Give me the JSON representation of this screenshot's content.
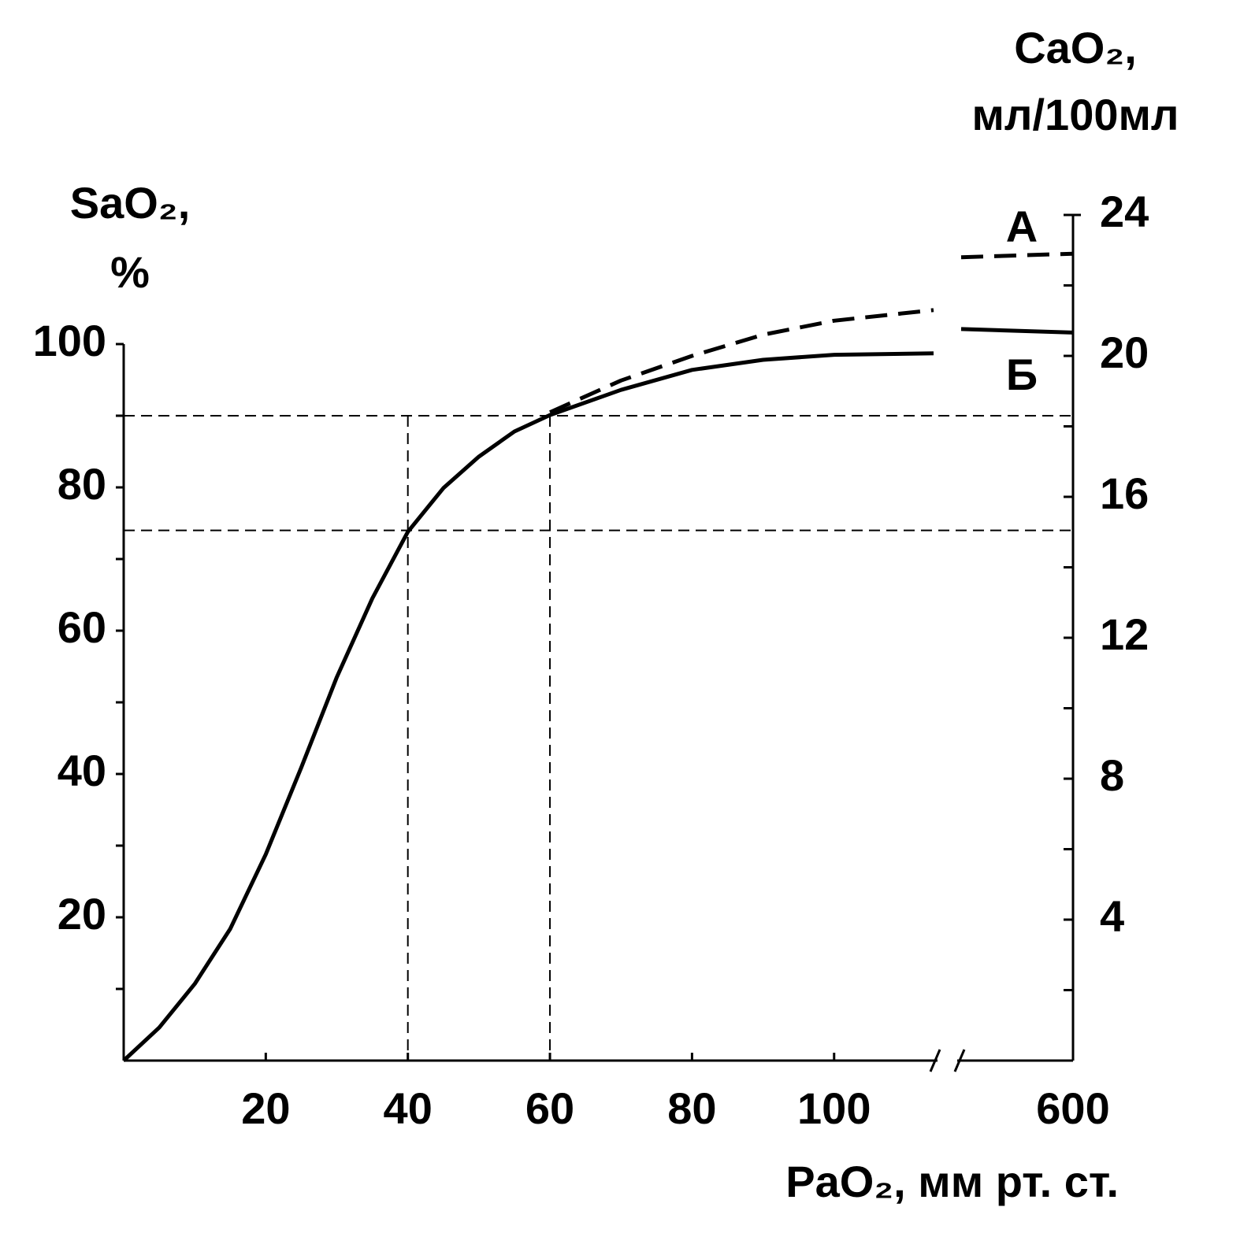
{
  "chart_data": {
    "type": "line",
    "y_label": [
      "SaO₂,",
      "%"
    ],
    "y2_label": [
      "CaO₂,",
      "мл/100мл"
    ],
    "x_label": "PaO₂, мм рт. ст.",
    "x": [
      0,
      5,
      10,
      15,
      20,
      25,
      30,
      35,
      40,
      45,
      50,
      55,
      60,
      70,
      80,
      90,
      100,
      114,
      585,
      600
    ],
    "xlim": [
      0,
      600
    ],
    "xbreak": [
      114,
      585
    ],
    "xticks": [
      20,
      40,
      60,
      80,
      100,
      600
    ],
    "ylim": [
      0,
      100
    ],
    "yticks": [
      20,
      40,
      60,
      80,
      100
    ],
    "yminorticks": [
      10,
      30,
      50,
      70,
      90
    ],
    "y2lim": [
      0,
      24
    ],
    "y2ticks": [
      4,
      8,
      12,
      16,
      20,
      24
    ],
    "y2minorticks": [
      2,
      6,
      10,
      14,
      18,
      22
    ],
    "reference_lines": {
      "x": [
        40,
        60
      ],
      "y": [
        90,
        74
      ]
    },
    "series": [
      {
        "name": "Б",
        "color": "#000000",
        "linestyle": "solid",
        "values": [
          0,
          4.6,
          10.7,
          18.4,
          28.8,
          40.9,
          53.5,
          64.5,
          73.8,
          79.9,
          84.3,
          87.8,
          90.1,
          93.6,
          96.4,
          97.8,
          98.5,
          98.7,
          102.1,
          101.6
        ]
      },
      {
        "name": "А",
        "color": "#000000",
        "linestyle": "dashed",
        "axis": "y2",
        "values": [
          null,
          null,
          null,
          null,
          null,
          null,
          null,
          null,
          null,
          null,
          null,
          null,
          18.4,
          19.3,
          20.0,
          20.6,
          21.0,
          21.3,
          22.8,
          22.9
        ]
      }
    ]
  }
}
